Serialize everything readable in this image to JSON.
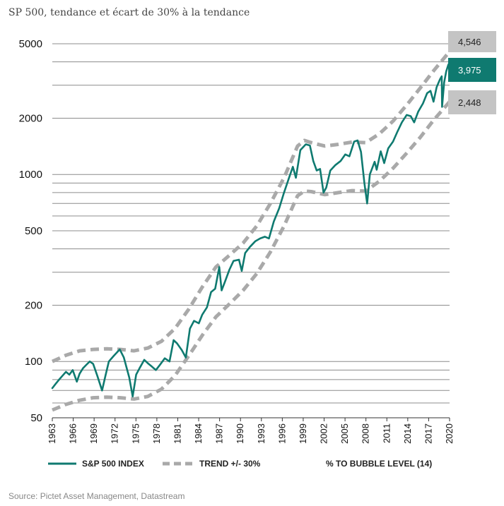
{
  "title": "SP 500, tendance et écart de 30% à la tendance",
  "source": "Source: Pictet Asset Management, Datastream",
  "colors": {
    "index": "#0f7a70",
    "trend": "#a9a9a9",
    "grid": "#8c8c8c",
    "box_grey": "#c4c4c4",
    "box_teal": "#0f7a70"
  },
  "chart_data": {
    "type": "line",
    "yscale": "log",
    "xlim": [
      1963,
      2020
    ],
    "ylim": [
      50,
      6000
    ],
    "y_ticks": [
      50,
      100,
      200,
      500,
      1000,
      2000,
      5000
    ],
    "y_tick_labels": [
      "50",
      "100",
      "200",
      "500",
      "1000",
      "2000",
      "5000"
    ],
    "x_ticks": [
      1963,
      1966,
      1969,
      1972,
      1975,
      1978,
      1981,
      1984,
      1987,
      1990,
      1993,
      1996,
      1999,
      2002,
      2005,
      2008,
      2011,
      2014,
      2017,
      2020
    ],
    "x_tick_labels": [
      "1963",
      "1966",
      "1969",
      "1972",
      "1975",
      "1978",
      "1981",
      "1984",
      "1987",
      "1990",
      "1993",
      "1996",
      "1999",
      "2002",
      "2005",
      "2008",
      "2011",
      "2014",
      "2017",
      "2020"
    ],
    "grid": "horizontal minor-log gridlines",
    "legend_position": "bottom",
    "legend": [
      {
        "label": "S&P 500 INDEX",
        "style": "solid"
      },
      {
        "label": "TREND +/- 30%",
        "style": "dashed"
      },
      {
        "label": "% TO BUBBLE LEVEL (14)",
        "style": "none"
      }
    ],
    "end_labels": [
      {
        "text": "4,546",
        "value": 4546,
        "color": "grey"
      },
      {
        "text": "3,975",
        "value": 3975,
        "color": "teal"
      },
      {
        "text": "2,448",
        "value": 2448,
        "color": "grey"
      }
    ],
    "series": [
      {
        "name": "S&P 500 INDEX",
        "style": "solid",
        "points": [
          [
            1963,
            72
          ],
          [
            1963.5,
            76
          ],
          [
            1964,
            80
          ],
          [
            1964.5,
            84
          ],
          [
            1965,
            88
          ],
          [
            1965.5,
            85
          ],
          [
            1966,
            90
          ],
          [
            1966.6,
            78
          ],
          [
            1967,
            86
          ],
          [
            1967.5,
            92
          ],
          [
            1968,
            96
          ],
          [
            1968.5,
            100
          ],
          [
            1969,
            97
          ],
          [
            1969.6,
            84
          ],
          [
            1970.3,
            70
          ],
          [
            1970.8,
            84
          ],
          [
            1971.3,
            100
          ],
          [
            1972,
            107
          ],
          [
            1972.9,
            116
          ],
          [
            1973.5,
            105
          ],
          [
            1974.3,
            82
          ],
          [
            1974.8,
            65
          ],
          [
            1975.3,
            85
          ],
          [
            1975.8,
            92
          ],
          [
            1976.5,
            102
          ],
          [
            1977,
            98
          ],
          [
            1977.6,
            94
          ],
          [
            1978.2,
            90
          ],
          [
            1978.8,
            96
          ],
          [
            1979.5,
            104
          ],
          [
            1980.2,
            100
          ],
          [
            1980.8,
            130
          ],
          [
            1981.3,
            125
          ],
          [
            1982.0,
            115
          ],
          [
            1982.6,
            105
          ],
          [
            1983.2,
            150
          ],
          [
            1983.8,
            165
          ],
          [
            1984.5,
            160
          ],
          [
            1985,
            178
          ],
          [
            1985.7,
            195
          ],
          [
            1986.3,
            235
          ],
          [
            1986.9,
            245
          ],
          [
            1987.5,
            320
          ],
          [
            1987.85,
            240
          ],
          [
            1988.3,
            265
          ],
          [
            1989,
            310
          ],
          [
            1989.6,
            345
          ],
          [
            1990.4,
            350
          ],
          [
            1990.8,
            305
          ],
          [
            1991.3,
            380
          ],
          [
            1992,
            410
          ],
          [
            1992.8,
            440
          ],
          [
            1993.5,
            455
          ],
          [
            1994.2,
            465
          ],
          [
            1994.8,
            455
          ],
          [
            1995.5,
            560
          ],
          [
            1996.3,
            660
          ],
          [
            1997,
            800
          ],
          [
            1997.7,
            950
          ],
          [
            1998.3,
            1100
          ],
          [
            1998.75,
            960
          ],
          [
            1999.4,
            1350
          ],
          [
            2000.2,
            1450
          ],
          [
            2000.8,
            1430
          ],
          [
            2001.3,
            1180
          ],
          [
            2001.8,
            1050
          ],
          [
            2002.3,
            1070
          ],
          [
            2002.8,
            800
          ],
          [
            2003.2,
            850
          ],
          [
            2003.8,
            1050
          ],
          [
            2004.5,
            1120
          ],
          [
            2005.3,
            1180
          ],
          [
            2006,
            1280
          ],
          [
            2006.6,
            1250
          ],
          [
            2007.3,
            1500
          ],
          [
            2007.8,
            1520
          ],
          [
            2008.3,
            1320
          ],
          [
            2008.8,
            900
          ],
          [
            2009.2,
            700
          ],
          [
            2009.6,
            1000
          ],
          [
            2010.3,
            1170
          ],
          [
            2010.6,
            1060
          ],
          [
            2011.2,
            1330
          ],
          [
            2011.7,
            1150
          ],
          [
            2012.3,
            1380
          ],
          [
            2013,
            1500
          ],
          [
            2013.6,
            1680
          ],
          [
            2014.3,
            1900
          ],
          [
            2015,
            2080
          ],
          [
            2015.6,
            2050
          ],
          [
            2016.1,
            1900
          ],
          [
            2016.7,
            2170
          ],
          [
            2017.4,
            2400
          ],
          [
            2018,
            2720
          ],
          [
            2018.5,
            2800
          ],
          [
            2018.95,
            2450
          ],
          [
            2019.4,
            2930
          ],
          [
            2019.9,
            3230
          ],
          [
            2020.15,
            3350
          ],
          [
            2020.2,
            2300
          ],
          [
            2020.5,
            3100
          ],
          [
            2020.8,
            3550
          ],
          [
            2021.1,
            3850
          ],
          [
            2021.3,
            3975
          ]
        ]
      },
      {
        "name": "Trend +30%",
        "style": "dashed",
        "points": [
          [
            1963,
            100
          ],
          [
            1965,
            108
          ],
          [
            1967,
            114
          ],
          [
            1969,
            116
          ],
          [
            1971,
            117
          ],
          [
            1973,
            116
          ],
          [
            1975,
            114
          ],
          [
            1977,
            118
          ],
          [
            1979,
            128
          ],
          [
            1981,
            150
          ],
          [
            1983,
            190
          ],
          [
            1985,
            250
          ],
          [
            1987,
            320
          ],
          [
            1989,
            370
          ],
          [
            1991,
            430
          ],
          [
            1993,
            530
          ],
          [
            1995,
            700
          ],
          [
            1997,
            960
          ],
          [
            1999,
            1420
          ],
          [
            2000,
            1520
          ],
          [
            2001,
            1480
          ],
          [
            2003,
            1420
          ],
          [
            2005,
            1450
          ],
          [
            2007,
            1490
          ],
          [
            2009,
            1480
          ],
          [
            2011,
            1650
          ],
          [
            2013,
            1930
          ],
          [
            2015,
            2350
          ],
          [
            2017,
            2900
          ],
          [
            2019,
            3600
          ],
          [
            2021.3,
            4546
          ]
        ]
      },
      {
        "name": "Trend -30%",
        "style": "dashed",
        "points": [
          [
            1963,
            55
          ],
          [
            1965,
            59
          ],
          [
            1967,
            62
          ],
          [
            1969,
            64
          ],
          [
            1971,
            64.5
          ],
          [
            1973,
            64
          ],
          [
            1975,
            63
          ],
          [
            1977,
            65
          ],
          [
            1979,
            71
          ],
          [
            1981,
            84
          ],
          [
            1983,
            107
          ],
          [
            1985,
            138
          ],
          [
            1987,
            173
          ],
          [
            1989,
            203
          ],
          [
            1991,
            240
          ],
          [
            1993,
            295
          ],
          [
            1995,
            385
          ],
          [
            1997,
            530
          ],
          [
            1999,
            770
          ],
          [
            2000,
            815
          ],
          [
            2001,
            810
          ],
          [
            2003,
            780
          ],
          [
            2005,
            800
          ],
          [
            2007,
            820
          ],
          [
            2009,
            815
          ],
          [
            2011,
            920
          ],
          [
            2013,
            1080
          ],
          [
            2015,
            1300
          ],
          [
            2017,
            1580
          ],
          [
            2019,
            1960
          ],
          [
            2021.3,
            2448
          ]
        ]
      }
    ]
  }
}
